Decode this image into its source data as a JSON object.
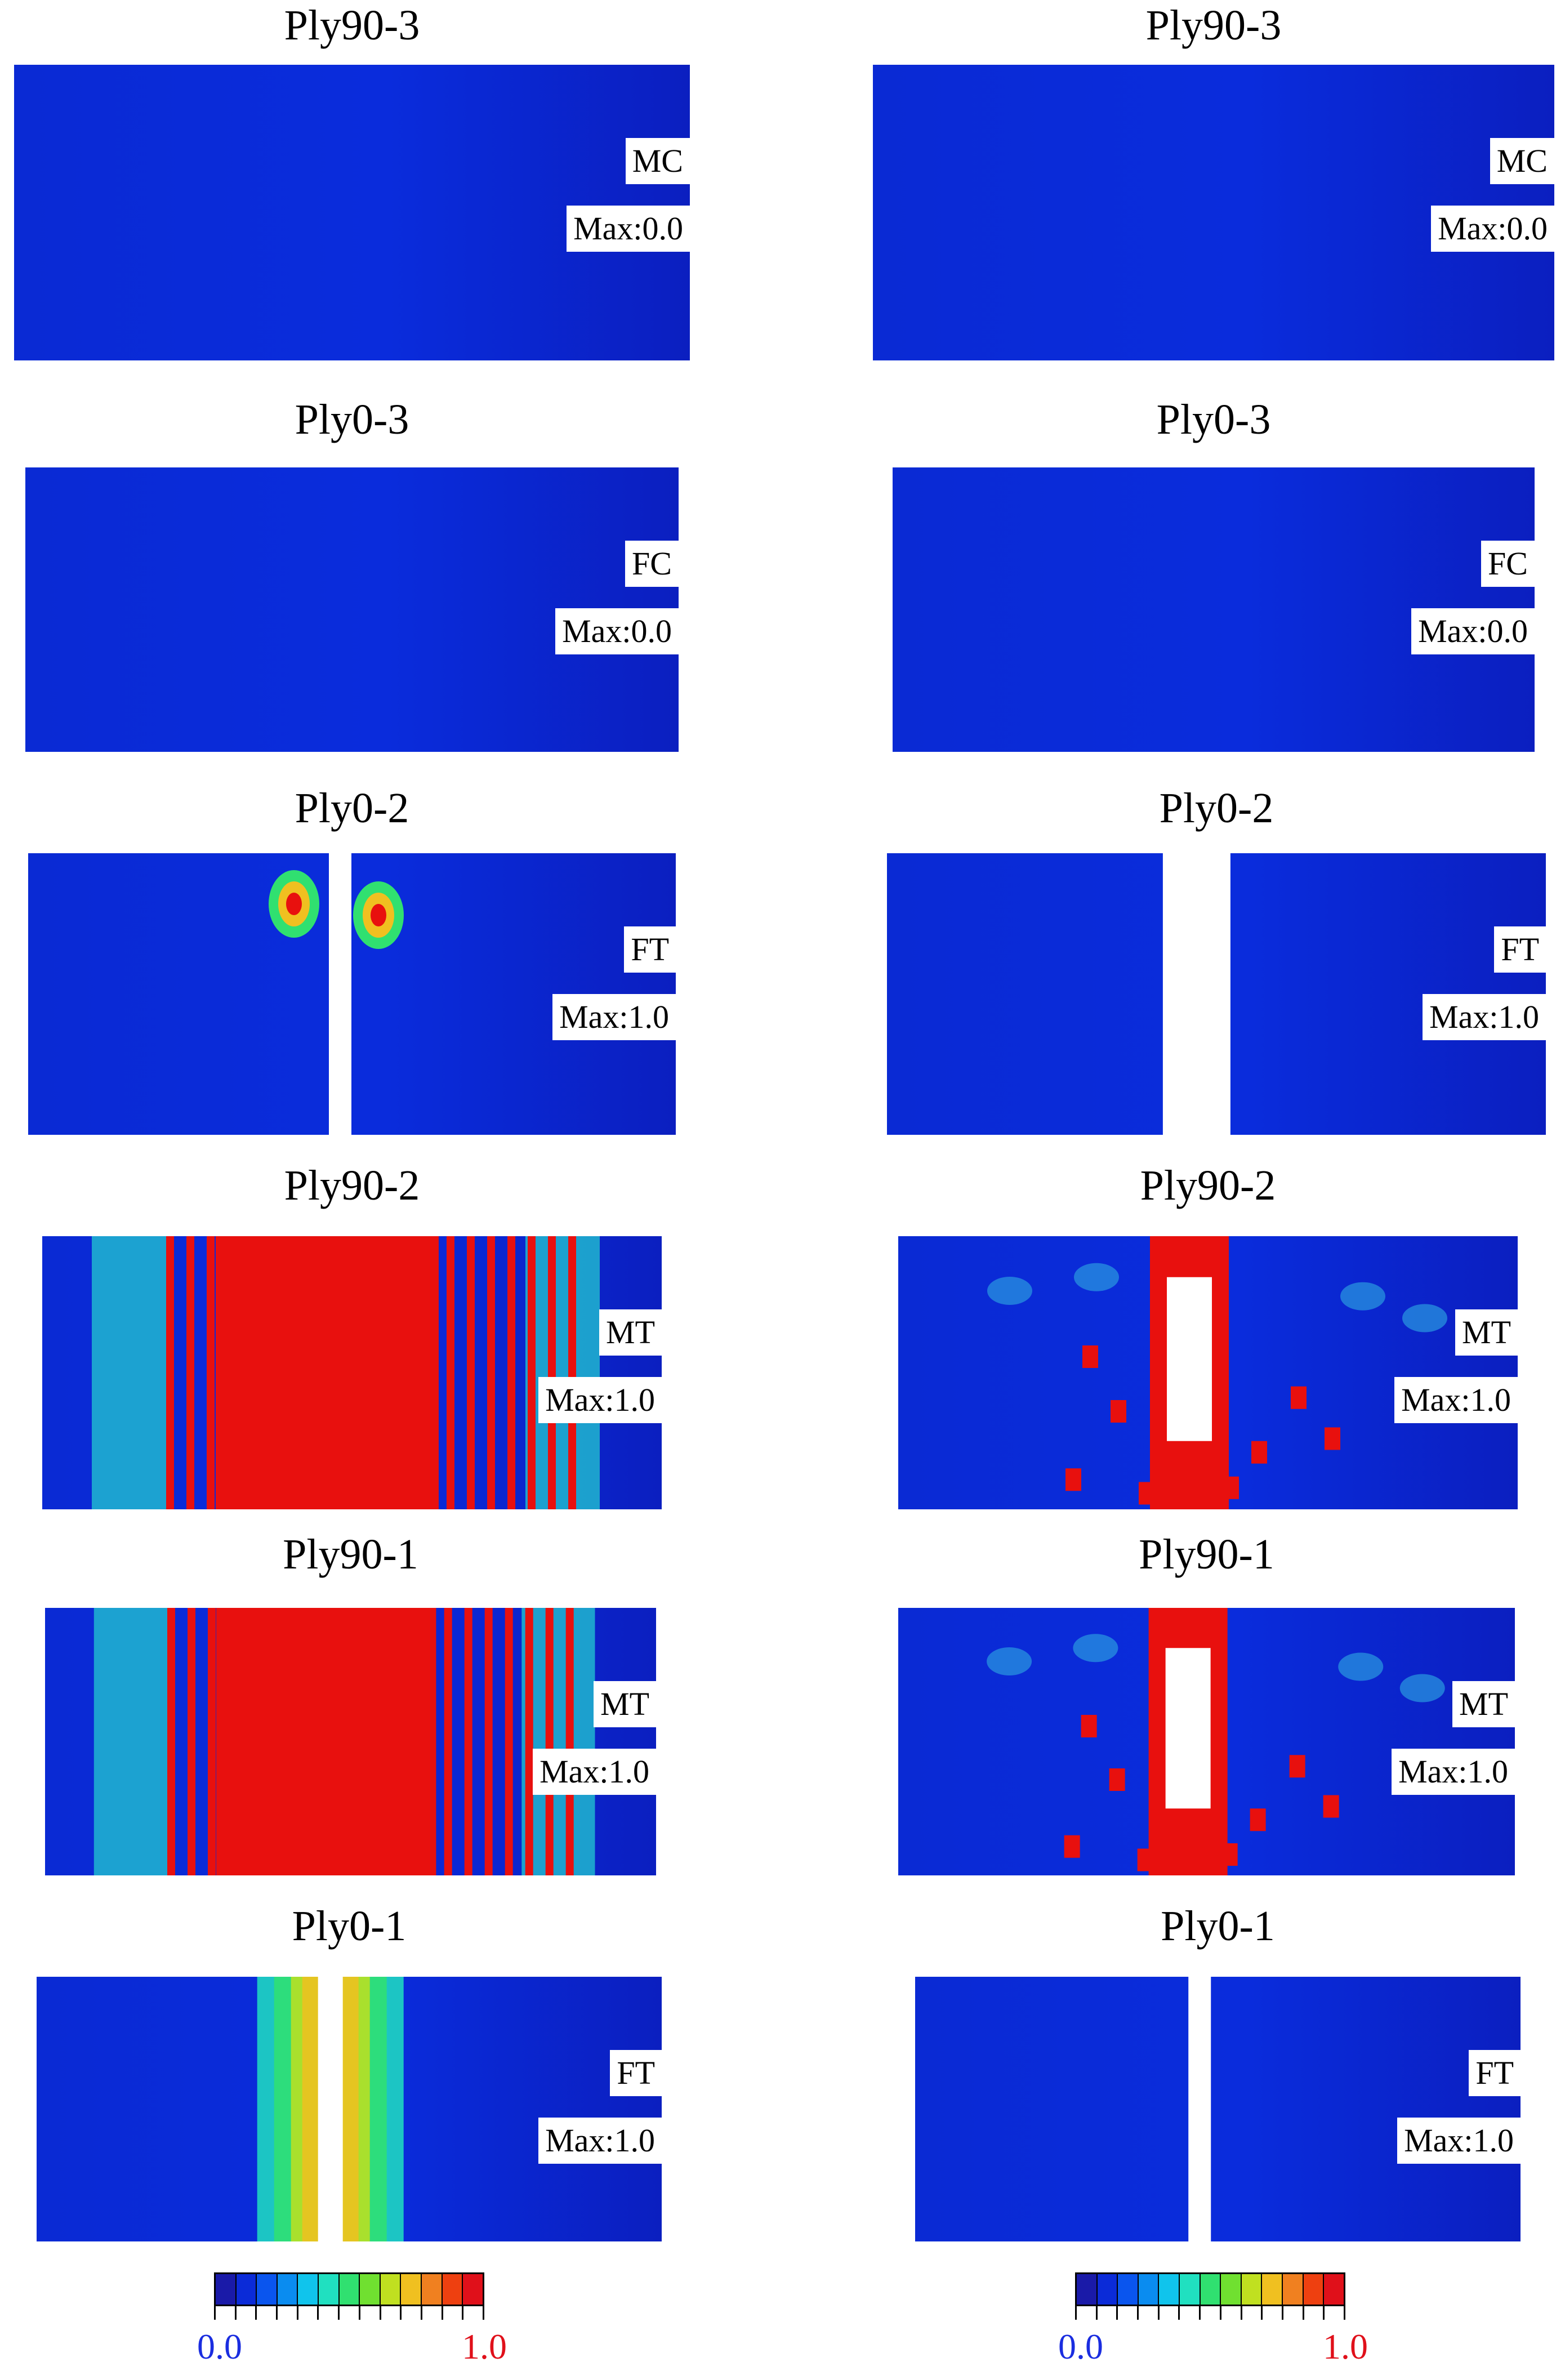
{
  "columns": [
    {
      "panels": [
        {
          "title": "Ply90-3",
          "mode": "MC",
          "max": "Max:0.0",
          "pattern": "none"
        },
        {
          "title": "Ply0-3",
          "mode": "FC",
          "max": "Max:0.0",
          "pattern": "none"
        },
        {
          "title": "Ply0-2",
          "mode": "FT",
          "max": "Max:1.0",
          "pattern": "crack-spots"
        },
        {
          "title": "Ply90-2",
          "mode": "MT",
          "max": "Max:1.0",
          "pattern": "wide-red-stripes"
        },
        {
          "title": "Ply90-1",
          "mode": "MT",
          "max": "Max:1.0",
          "pattern": "wide-red-stripes"
        },
        {
          "title": "Ply0-1",
          "mode": "FT",
          "max": "Max:1.0",
          "pattern": "crack-band"
        }
      ],
      "legend": {
        "min": "0.0",
        "max": "1.0"
      }
    },
    {
      "panels": [
        {
          "title": "Ply90-3",
          "mode": "MC",
          "max": "Max:0.0",
          "pattern": "none"
        },
        {
          "title": "Ply0-3",
          "mode": "FC",
          "max": "Max:0.0",
          "pattern": "none"
        },
        {
          "title": "Ply0-2",
          "mode": "FT",
          "max": "Max:1.0",
          "pattern": "wide-gap"
        },
        {
          "title": "Ply90-2",
          "mode": "MT",
          "max": "Max:1.0",
          "pattern": "scattered-red"
        },
        {
          "title": "Ply90-1",
          "mode": "MT",
          "max": "Max:1.0",
          "pattern": "scattered-red"
        },
        {
          "title": "Ply0-1",
          "mode": "FT",
          "max": "Max:1.0",
          "pattern": "thin-gap"
        }
      ],
      "legend": {
        "min": "0.0",
        "max": "1.0"
      }
    }
  ],
  "colors": {
    "low": "#0a2ad4",
    "high": "#e8100e",
    "scale": [
      "#1a1aa8",
      "#0b2bd8",
      "#0a55ee",
      "#0a8cf0",
      "#10c4ec",
      "#20e0c0",
      "#30e070",
      "#70e030",
      "#c0e020",
      "#f0c020",
      "#f08020",
      "#ee4010",
      "#e0101a"
    ]
  }
}
